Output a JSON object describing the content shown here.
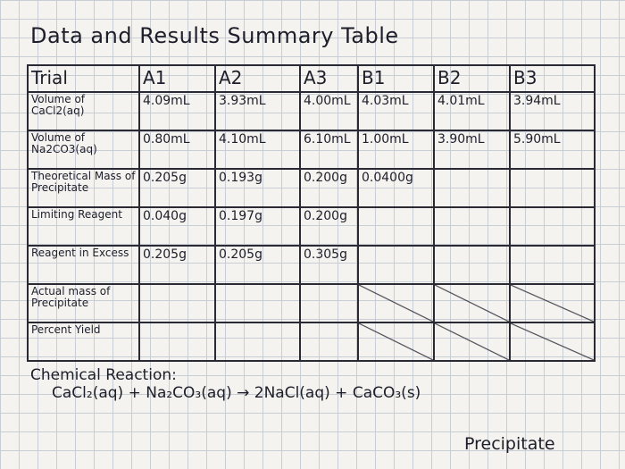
{
  "title": "Data and Results Summary Table",
  "table": {
    "header": [
      "Trial",
      "A1",
      "A2",
      "A3",
      "B1",
      "B2",
      "B3"
    ],
    "rows": [
      {
        "label": "Volume of CaCl2(aq)",
        "cells": [
          "4.09mL",
          "3.93mL",
          "4.00mL",
          "4.03mL",
          "4.01mL",
          "3.94mL"
        ]
      },
      {
        "label": "Volume of Na2CO3(aq)",
        "cells": [
          "0.80mL",
          "4.10mL",
          "6.10mL",
          "1.00mL",
          "3.90mL",
          "5.90mL"
        ]
      },
      {
        "label": "Theoretical Mass of Precipitate",
        "cells": [
          "0.205g",
          "0.193g",
          "0.200g",
          "0.0400g"
        ]
      },
      {
        "label": "Limiting Reagent",
        "cells": [
          "0.040g",
          "0.197g",
          "0.200g"
        ]
      },
      {
        "label": "Reagent in Excess",
        "cells": [
          "0.205g",
          "0.205g",
          "0.305g"
        ]
      },
      {
        "label": "Actual mass of Precipitate",
        "cells": []
      },
      {
        "label": "Percent Yield",
        "cells": []
      }
    ]
  },
  "reaction": {
    "heading": "Chemical Reaction:",
    "equation": "CaCl₂(aq) + Na₂CO₃(aq) → 2NaCl(aq) + CaCO₃(s)",
    "note": "Precipitate"
  }
}
